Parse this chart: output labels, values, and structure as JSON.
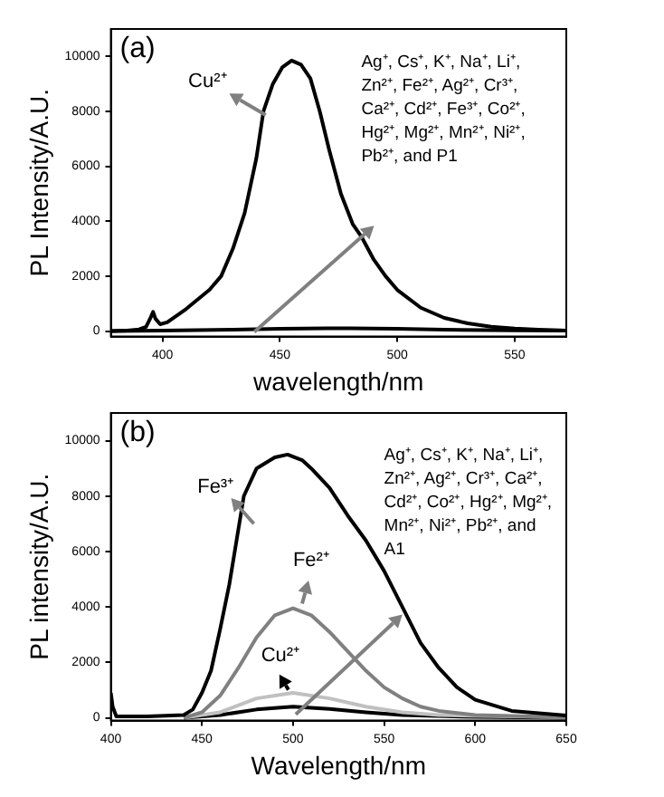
{
  "chart_data": [
    {
      "type": "line",
      "title": "(a)",
      "xlabel": "wavelength/nm",
      "ylabel": "PL Intensity/A.U.",
      "xlim": [
        378,
        572
      ],
      "xticks": [
        400,
        450,
        500,
        550
      ],
      "ylim": [
        -200,
        11000
      ],
      "yticks": [
        0,
        2000,
        4000,
        6000,
        8000,
        10000
      ],
      "grid": false,
      "legend": false,
      "marker": "none",
      "line_style": "solid",
      "series": [
        {
          "name": "Cu²⁺",
          "color": "#000000",
          "x": [
            378,
            385,
            390,
            393,
            395,
            396,
            397,
            399,
            402,
            410,
            420,
            425,
            430,
            435,
            440,
            443,
            447,
            451,
            455,
            459,
            463,
            467,
            471,
            476,
            481,
            485,
            490,
            495,
            500,
            510,
            520,
            530,
            540,
            550,
            560,
            572
          ],
          "values": [
            0,
            20,
            60,
            150,
            500,
            700,
            450,
            250,
            320,
            800,
            1500,
            2000,
            3000,
            4300,
            6300,
            8000,
            9000,
            9600,
            9850,
            9700,
            9200,
            8000,
            6600,
            5000,
            3900,
            3400,
            2600,
            2000,
            1500,
            850,
            480,
            280,
            160,
            90,
            50,
            20
          ]
        },
        {
          "color": "#000000",
          "x": [
            378,
            400,
            430,
            450,
            470,
            480,
            500,
            520,
            550,
            572
          ],
          "values": [
            0,
            20,
            50,
            80,
            100,
            100,
            80,
            50,
            30,
            20
          ]
        }
      ],
      "annotations": [
        "Ag⁺, Cs⁺, K⁺, Na⁺, Li⁺, Zn²⁺, Fe²⁺, Ag²⁺, Cr³⁺, Ca²⁺, Cd²⁺, Fe³⁺, Co²⁺, Hg²⁺, Mg²⁺, Mn²⁺, Ni²⁺, Pb²⁺, and P1"
      ]
    },
    {
      "type": "line",
      "title": "(b)",
      "xlabel": "Wavelength/nm",
      "ylabel": "PL intensity/A.U.",
      "xlim": [
        400,
        650
      ],
      "xticks": [
        400,
        450,
        500,
        550,
        600,
        650
      ],
      "ylim": [
        -100,
        11000
      ],
      "yticks": [
        0,
        2000,
        4000,
        6000,
        8000,
        10000
      ],
      "grid": false,
      "legend": false,
      "marker": "none",
      "line_style": "solid",
      "series": [
        {
          "name": "Fe³⁺",
          "color": "#000000",
          "x": [
            400,
            401,
            403,
            420,
            440,
            445,
            450,
            455,
            460,
            465,
            470,
            473,
            480,
            490,
            497,
            505,
            510,
            520,
            530,
            540,
            550,
            560,
            570,
            580,
            590,
            600,
            620,
            650
          ],
          "values": [
            900,
            400,
            50,
            50,
            100,
            300,
            900,
            1700,
            3200,
            4800,
            6800,
            8000,
            9000,
            9400,
            9500,
            9300,
            9000,
            8300,
            7300,
            6400,
            5300,
            4000,
            2700,
            1800,
            1100,
            650,
            250,
            80
          ]
        },
        {
          "name": "Fe²⁺",
          "color": "#808080",
          "x": [
            440,
            450,
            460,
            470,
            480,
            490,
            500,
            510,
            520,
            530,
            540,
            550,
            560,
            570,
            580,
            600,
            650
          ],
          "values": [
            0,
            200,
            800,
            1800,
            2900,
            3700,
            3950,
            3700,
            3100,
            2400,
            1700,
            1100,
            700,
            400,
            250,
            100,
            20
          ]
        },
        {
          "name": "Cu²⁺",
          "color": "#c0c0c0",
          "x": [
            440,
            460,
            480,
            500,
            520,
            540,
            560,
            580,
            650
          ],
          "values": [
            0,
            200,
            700,
            900,
            700,
            400,
            200,
            100,
            20
          ]
        },
        {
          "color": "#000000",
          "x": [
            440,
            460,
            480,
            500,
            520,
            540,
            560,
            600,
            650
          ],
          "values": [
            0,
            100,
            300,
            400,
            320,
            200,
            100,
            30,
            0
          ]
        }
      ],
      "annotations": [
        "Ag⁺, Cs⁺, K⁺, Na⁺, Li⁺, Zn²⁺, Ag²⁺, Cr³⁺, Ca²⁺, Cd²⁺, Co²⁺, Hg²⁺, Mg²⁺, Mn²⁺, Ni²⁺, Pb²⁺, and A1"
      ]
    }
  ]
}
